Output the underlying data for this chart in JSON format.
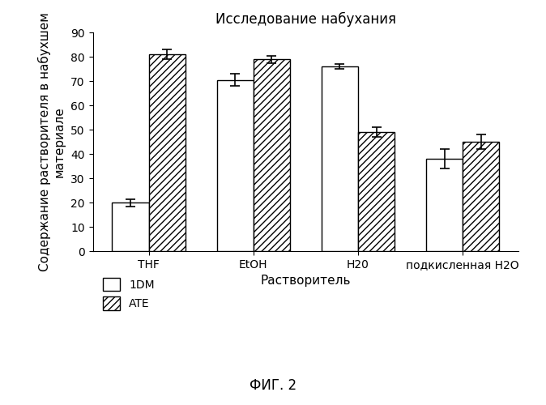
{
  "title": "Исследование набухания",
  "xlabel": "Растворитель",
  "ylabel": "Содержание растворителя в набухшем\nматериале",
  "categories": [
    "THF",
    "EtOH",
    "H20",
    "подкисленная H2O"
  ],
  "series": {
    "1DM": {
      "values": [
        20,
        70.5,
        76,
        38
      ],
      "errors": [
        1.5,
        2.5,
        1.0,
        4.0
      ],
      "color": "#ffffff",
      "edgecolor": "#000000",
      "hatch": null,
      "label": "1DM"
    },
    "ATE": {
      "values": [
        81,
        79,
        49,
        45
      ],
      "errors": [
        2.0,
        1.5,
        2.0,
        3.0
      ],
      "color": "#ffffff",
      "edgecolor": "#000000",
      "hatch": "////",
      "label": "ATE"
    }
  },
  "ylim": [
    0,
    90
  ],
  "yticks": [
    0,
    10,
    20,
    30,
    40,
    50,
    60,
    70,
    80,
    90
  ],
  "bar_width": 0.35,
  "figsize": [
    6.74,
    5.0
  ],
  "dpi": 100,
  "title_fontsize": 12,
  "label_fontsize": 11,
  "tick_fontsize": 10,
  "legend_fontsize": 10,
  "caption": "ФИГ. 2",
  "caption_fontsize": 12
}
